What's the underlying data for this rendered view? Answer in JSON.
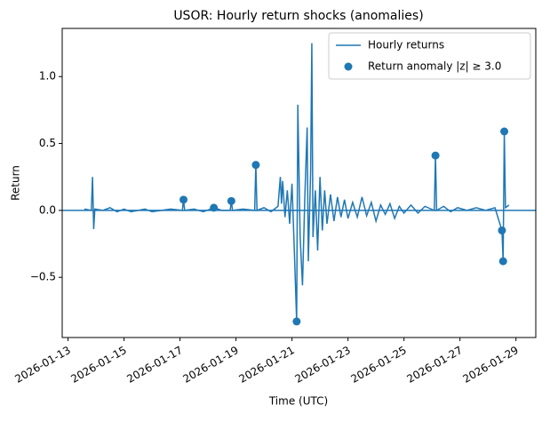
{
  "chart_data": {
    "type": "line",
    "title": "USOR: Hourly return shocks (anomalies)",
    "xlabel": "Time (UTC)",
    "ylabel": "Return",
    "xlim": [
      "2026-01-12T19:00",
      "2026-01-29T17:00"
    ],
    "xticks": [
      "2026-01-13",
      "2026-01-15",
      "2026-01-17",
      "2026-01-19",
      "2026-01-21",
      "2026-01-23",
      "2026-01-25",
      "2026-01-27",
      "2026-01-29"
    ],
    "ylim": [
      -0.95,
      1.36
    ],
    "yticks": [
      {
        "value": -0.5,
        "label": "−0.5"
      },
      {
        "value": 0,
        "label": "0.0"
      },
      0.5,
      {
        "value": 1,
        "label": "1.0"
      }
    ],
    "hline": 0,
    "legend": "upper right",
    "series": [
      {
        "name": "Hourly returns",
        "type": "line",
        "color": "#1f77b4",
        "x": [
          "2026-01-13T14:00",
          "2026-01-13T20:00",
          "2026-01-13T21:00",
          "2026-01-13T22:00",
          "2026-01-13T23:00",
          "2026-01-14T06:00",
          "2026-01-14T12:00",
          "2026-01-14T18:00",
          "2026-01-15T00:00",
          "2026-01-15T06:00",
          "2026-01-15T12:00",
          "2026-01-15T18:00",
          "2026-01-16T00:00",
          "2026-01-16T08:00",
          "2026-01-16T16:00",
          "2026-01-17T02:00",
          "2026-01-17T03:00",
          "2026-01-17T04:00",
          "2026-01-17T12:00",
          "2026-01-17T20:00",
          "2026-01-18T05:00",
          "2026-01-18T12:00",
          "2026-01-18T19:00",
          "2026-01-18T20:00",
          "2026-01-18T21:00",
          "2026-01-19T06:00",
          "2026-01-19T16:00",
          "2026-01-19T17:00",
          "2026-01-19T18:00",
          "2026-01-20T00:00",
          "2026-01-20T06:00",
          "2026-01-20T12:00",
          "2026-01-20T14:00",
          "2026-01-20T15:00",
          "2026-01-20T16:00",
          "2026-01-20T18:00",
          "2026-01-20T20:00",
          "2026-01-20T22:00",
          "2026-01-21T00:00",
          "2026-01-21T02:00",
          "2026-01-21T04:00",
          "2026-01-21T05:00",
          "2026-01-21T07:00",
          "2026-01-21T09:00",
          "2026-01-21T11:00",
          "2026-01-21T13:00",
          "2026-01-21T14:00",
          "2026-01-21T16:00",
          "2026-01-21T17:00",
          "2026-01-21T18:00",
          "2026-01-21T20:00",
          "2026-01-21T22:00",
          "2026-01-22T00:00",
          "2026-01-22T02:00",
          "2026-01-22T04:00",
          "2026-01-22T06:00",
          "2026-01-22T09:00",
          "2026-01-22T12:00",
          "2026-01-22T15:00",
          "2026-01-22T18:00",
          "2026-01-22T21:00",
          "2026-01-23T00:00",
          "2026-01-23T04:00",
          "2026-01-23T08:00",
          "2026-01-23T12:00",
          "2026-01-23T16:00",
          "2026-01-23T20:00",
          "2026-01-24T00:00",
          "2026-01-24T04:00",
          "2026-01-24T08:00",
          "2026-01-24T12:00",
          "2026-01-24T16:00",
          "2026-01-24T20:00",
          "2026-01-25T00:00",
          "2026-01-25T06:00",
          "2026-01-25T12:00",
          "2026-01-25T18:00",
          "2026-01-26T02:00",
          "2026-01-26T03:00",
          "2026-01-26T04:00",
          "2026-01-26T10:00",
          "2026-01-26T16:00",
          "2026-01-26T22:00",
          "2026-01-27T06:00",
          "2026-01-27T14:00",
          "2026-01-27T22:00",
          "2026-01-28T06:00",
          "2026-01-28T12:00",
          "2026-01-28T13:00",
          "2026-01-28T14:00",
          "2026-01-28T15:00",
          "2026-01-28T18:00"
        ],
        "values": [
          0.01,
          0,
          0.25,
          -0.14,
          0.01,
          0,
          0.02,
          -0.01,
          0.01,
          -0.01,
          0,
          0.01,
          -0.01,
          0,
          0.01,
          0,
          0.08,
          0,
          0.01,
          -0.01,
          0.02,
          0,
          0,
          0.07,
          0,
          0.01,
          0,
          0.34,
          0,
          0.02,
          -0.01,
          0.03,
          0.25,
          0.05,
          0.22,
          -0.05,
          0.15,
          -0.1,
          0.2,
          -0.3,
          -0.83,
          0.79,
          -0.2,
          -0.56,
          0.1,
          0.62,
          -0.38,
          0.3,
          1.25,
          -0.2,
          0.15,
          -0.3,
          0.25,
          -0.15,
          0.15,
          -0.1,
          0.12,
          -0.08,
          0.1,
          -0.05,
          0.08,
          -0.06,
          0.06,
          -0.05,
          0.1,
          -0.04,
          0.06,
          -0.08,
          0.04,
          -0.03,
          0.05,
          -0.06,
          0.03,
          -0.02,
          0.04,
          -0.02,
          0.03,
          0,
          0.41,
          0,
          0.03,
          -0.01,
          0.02,
          0,
          0.02,
          0,
          0.02,
          -0.15,
          -0.38,
          0.59,
          0.02,
          0.04
        ]
      },
      {
        "name": "Return anomaly |z| ≥ 3.0",
        "type": "scatter",
        "color": "#1f77b4",
        "x": [
          "2026-01-17T03:00",
          "2026-01-18T05:00",
          "2026-01-18T20:00",
          "2026-01-19T17:00",
          "2026-01-21T04:00",
          "2026-01-26T03:00",
          "2026-01-28T12:00",
          "2026-01-28T13:00",
          "2026-01-28T14:00"
        ],
        "values": [
          0.08,
          0.02,
          0.07,
          0.34,
          -0.83,
          0.41,
          -0.15,
          -0.38,
          0.59
        ]
      }
    ]
  }
}
